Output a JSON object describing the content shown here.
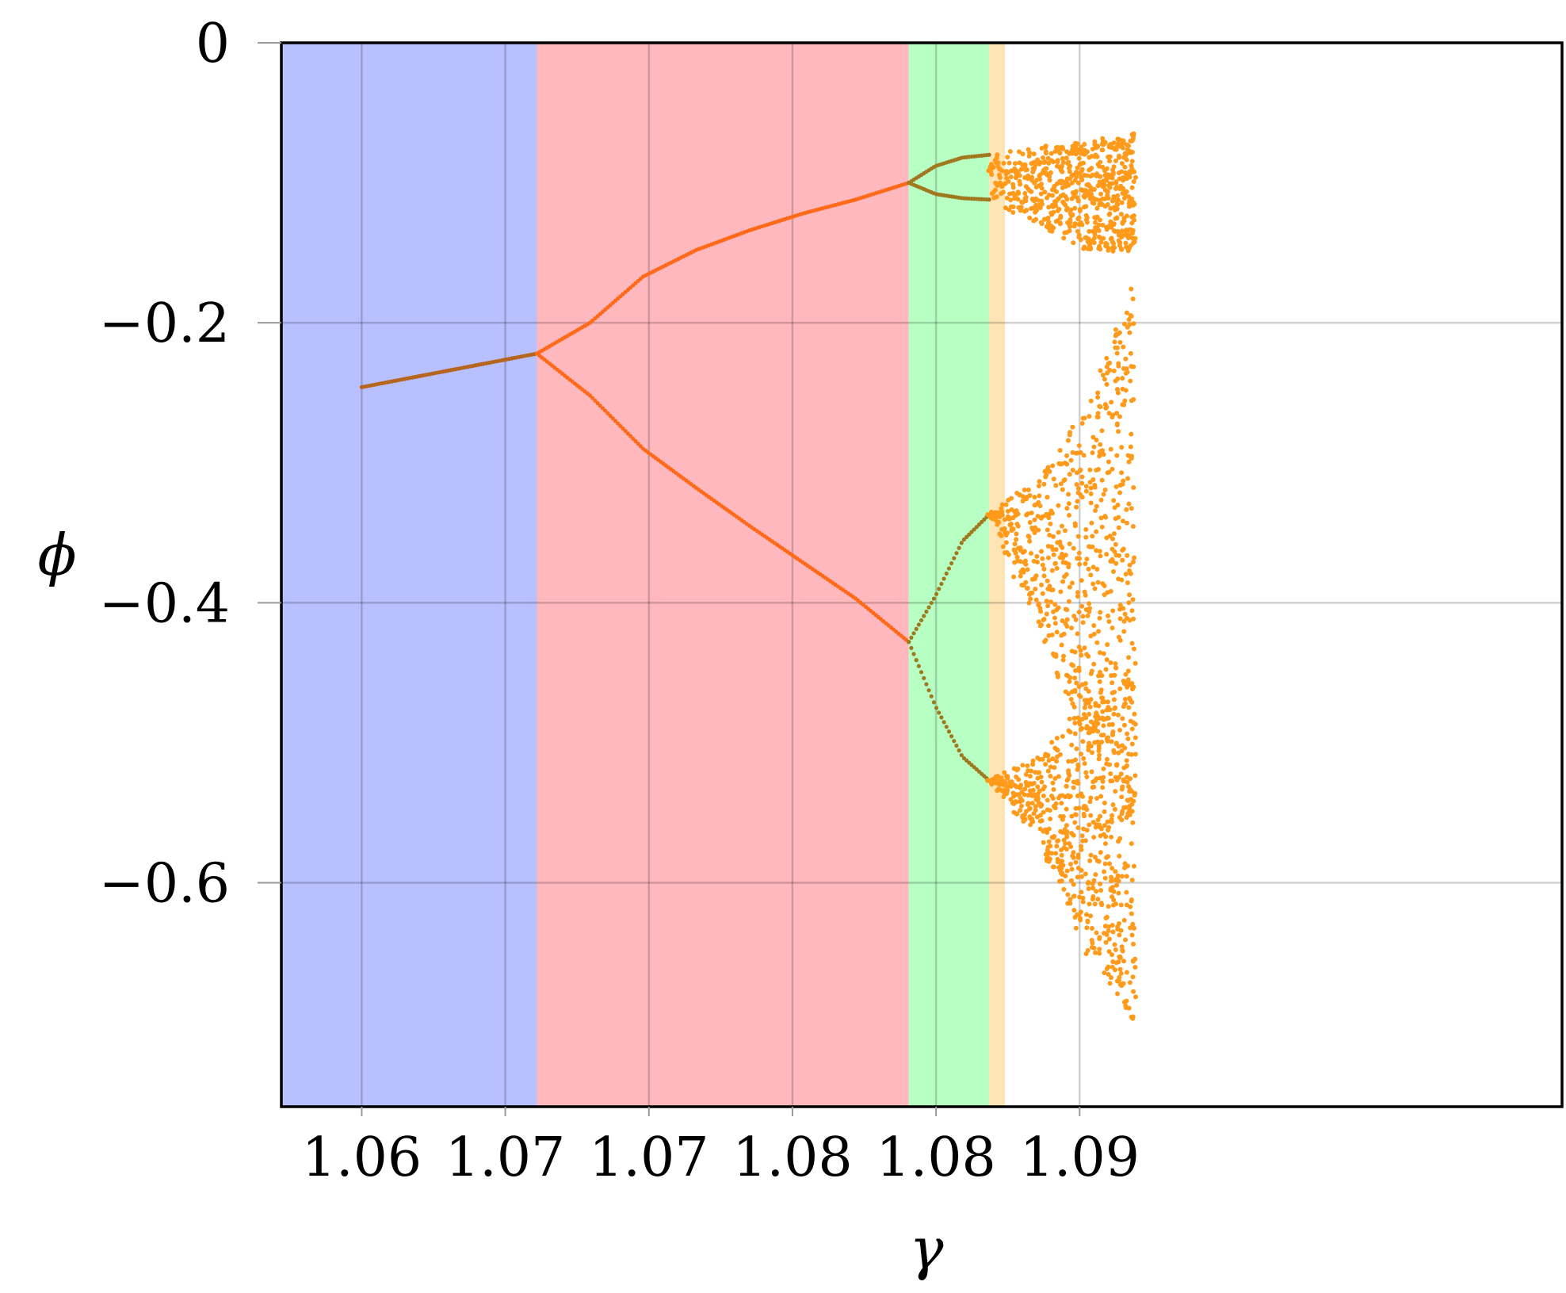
{
  "chart_data": {
    "type": "scatter",
    "title": "",
    "xlabel": "γ",
    "ylabel": "ϕ",
    "xlim": [
      1.0547,
      1.0993
    ],
    "ylim": [
      -0.76,
      0.0
    ],
    "grid": true,
    "x_ticks": [
      {
        "value": 1.0575,
        "label": "1.06"
      },
      {
        "value": 1.0625,
        "label": "1.07"
      },
      {
        "value": 1.0675,
        "label": "1.07"
      },
      {
        "value": 1.0725,
        "label": "1.08"
      },
      {
        "value": 1.0775,
        "label": "1.08"
      },
      {
        "value": 1.0825,
        "label": "1.09"
      }
    ],
    "y_ticks": [
      {
        "value": 0.0,
        "label": "0"
      },
      {
        "value": -0.2,
        "label": "−0.2"
      },
      {
        "value": -0.4,
        "label": "−0.4"
      },
      {
        "value": -0.6,
        "label": "−0.6"
      }
    ],
    "regions": [
      {
        "x_start": 1.0547,
        "x_end": 1.0636,
        "color": "#b8c0ff"
      },
      {
        "x_start": 1.0636,
        "x_end": 1.07655,
        "color": "#ffb8bd"
      },
      {
        "x_start": 1.07655,
        "x_end": 1.07935,
        "color": "#b8ffc4"
      },
      {
        "x_start": 1.07935,
        "x_end": 1.0799,
        "color": "#ffe4b5"
      }
    ],
    "colors": {
      "period1": "#b5651d",
      "period2": "#ff6a1a",
      "period4": "#a0781e",
      "chaos": "#ff9a1a"
    },
    "branches": [
      {
        "name": "period-1",
        "x_start": 1.0575,
        "x_end": 1.0636,
        "y": [
          -0.246,
          -0.222
        ]
      },
      {
        "name": "period-2 upper",
        "x_start": 1.0636,
        "x_end": 1.07655,
        "y": [
          -0.222,
          -0.2,
          -0.167,
          -0.148,
          -0.134,
          -0.122,
          -0.112,
          -0.1
        ]
      },
      {
        "name": "period-2 lower",
        "x_start": 1.0636,
        "x_end": 1.07655,
        "y": [
          -0.222,
          -0.252,
          -0.29,
          -0.318,
          -0.345,
          -0.371,
          -0.397,
          -0.428
        ]
      },
      {
        "name": "period-4 a",
        "x_start": 1.07655,
        "x_end": 1.07935,
        "y": [
          -0.1,
          -0.088,
          -0.082,
          -0.08
        ]
      },
      {
        "name": "period-4 b",
        "x_start": 1.07655,
        "x_end": 1.07935,
        "y": [
          -0.1,
          -0.108,
          -0.111,
          -0.112
        ]
      },
      {
        "name": "period-4 c",
        "x_start": 1.07655,
        "x_end": 1.07935,
        "y": [
          -0.428,
          -0.395,
          -0.356,
          -0.337
        ]
      },
      {
        "name": "period-4 d",
        "x_start": 1.07655,
        "x_end": 1.07935,
        "y": [
          -0.428,
          -0.474,
          -0.51,
          -0.527
        ]
      }
    ],
    "chaotic_bands": [
      {
        "x_start": 1.07935,
        "x_end": 1.0844,
        "y_low": [
          -0.113,
          -0.13,
          -0.148,
          -0.15
        ],
        "y_high": [
          -0.08,
          -0.074,
          -0.07,
          -0.064
        ]
      },
      {
        "x_start": 1.07935,
        "x_end": 1.0844,
        "y_low": [
          -0.337,
          -0.42,
          -0.5,
          -0.55
        ],
        "y_high": [
          -0.337,
          -0.31,
          -0.26,
          -0.17
        ]
      },
      {
        "x_start": 1.07935,
        "x_end": 1.0844,
        "y_low": [
          -0.527,
          -0.57,
          -0.65,
          -0.7
        ],
        "y_high": [
          -0.527,
          -0.51,
          -0.47,
          -0.45
        ]
      }
    ]
  }
}
